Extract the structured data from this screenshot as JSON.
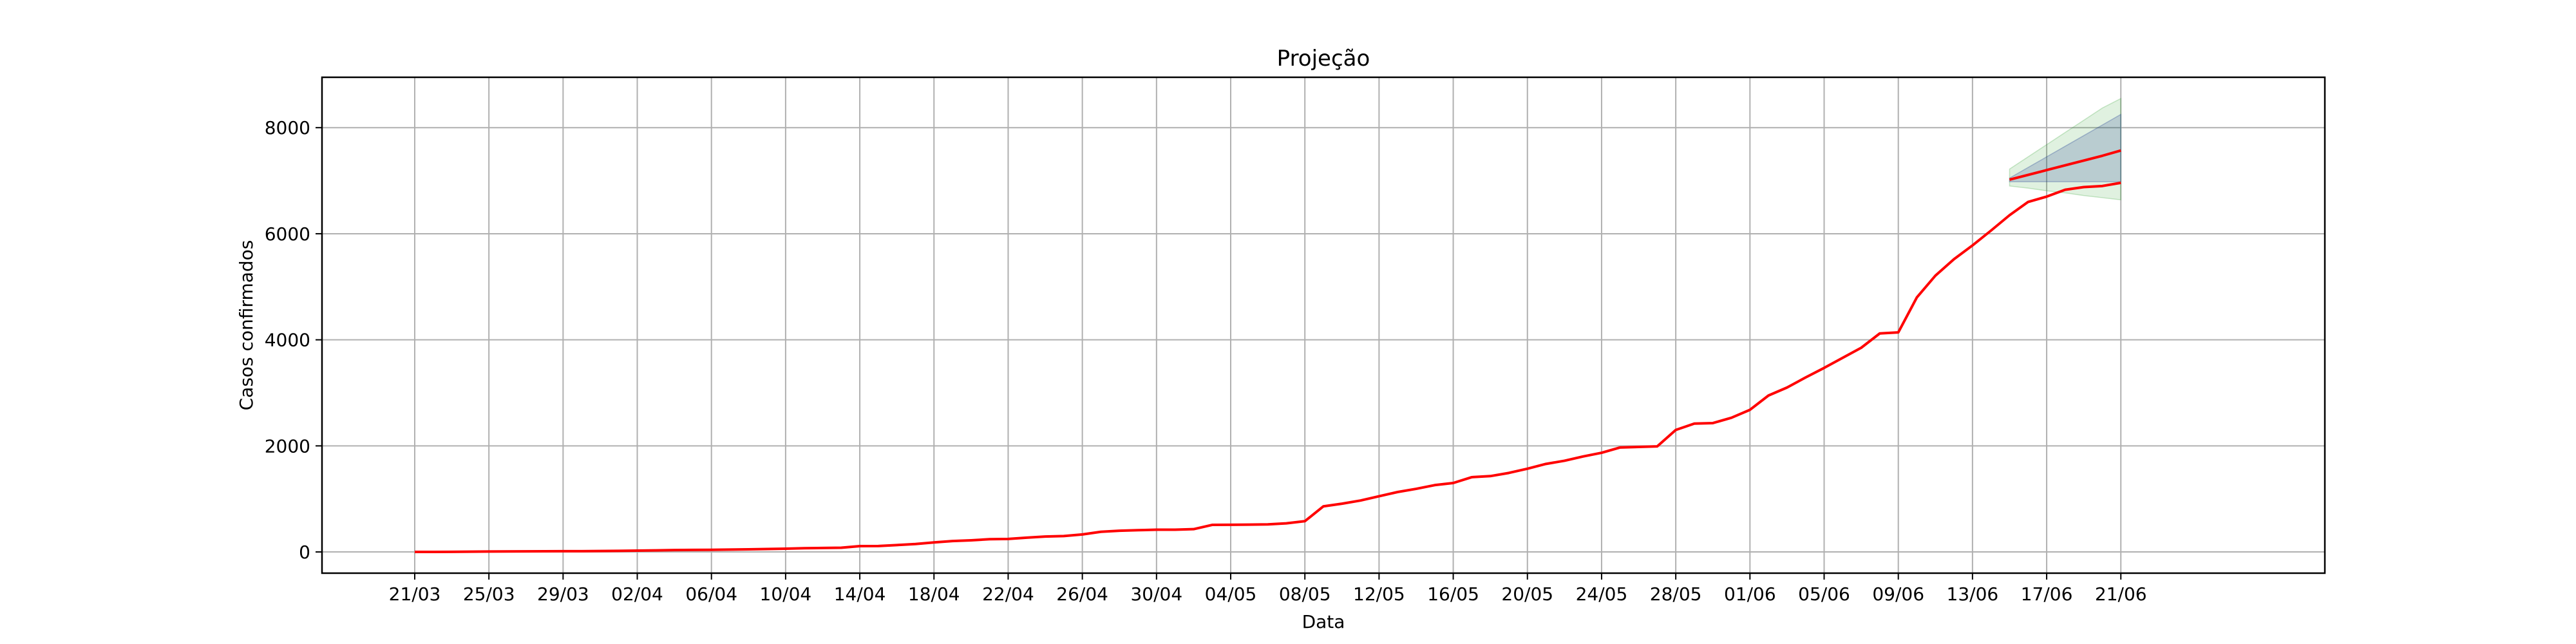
{
  "chart_data": {
    "type": "line",
    "title": "Projeção",
    "xlabel": "Data",
    "ylabel": "Casos confirmados",
    "x_start": "2020-03-21",
    "xlim": [
      "2020-03-16",
      "2020-07-02"
    ],
    "ylim": [
      -400,
      8950
    ],
    "grid": true,
    "x_ticks": [
      "21/03",
      "25/03",
      "29/03",
      "02/04",
      "06/04",
      "10/04",
      "14/04",
      "18/04",
      "22/04",
      "26/04",
      "30/04",
      "04/05",
      "08/05",
      "12/05",
      "16/05",
      "20/05",
      "24/05",
      "28/05",
      "01/06",
      "05/06",
      "09/06",
      "13/06",
      "17/06",
      "21/06"
    ],
    "y_ticks": [
      0,
      2000,
      4000,
      6000,
      8000
    ],
    "series": [
      {
        "color": "#ff0000",
        "values": [
          0,
          0,
          2,
          5,
          8,
          10,
          12,
          13,
          14,
          15,
          18,
          20,
          25,
          30,
          35,
          38,
          40,
          45,
          50,
          55,
          62,
          70,
          75,
          80,
          110,
          112,
          130,
          150,
          180,
          205,
          220,
          240,
          245,
          270,
          290,
          300,
          330,
          380,
          400,
          410,
          420,
          420,
          430,
          510,
          512,
          515,
          520,
          540,
          580,
          860,
          910,
          970,
          1050,
          1130,
          1190,
          1260,
          1300,
          1410,
          1430,
          1490,
          1570,
          1660,
          1720,
          1800,
          1870,
          1970,
          1980,
          1990,
          2300,
          2420,
          2430,
          2530,
          2680,
          2950,
          3100,
          3290,
          3470,
          3660,
          3850,
          4120,
          4140,
          4800,
          5210,
          5520,
          5780,
          6060,
          6350,
          6600,
          6700,
          6830,
          6880,
          6900,
          6960
        ]
      },
      {
        "color": "#ff0000",
        "start": "2020-06-15",
        "values": [
          7020,
          7110,
          7200,
          7290,
          7380,
          7470,
          7570
        ]
      }
    ],
    "confidence_bands": [
      {
        "color": "#2ca02c",
        "opacity": 0.15,
        "start": "2020-06-15",
        "lower": [
          6900,
          6860,
          6810,
          6770,
          6720,
          6680,
          6640
        ],
        "upper": [
          7220,
          7450,
          7680,
          7910,
          8140,
          8370,
          8550
        ]
      },
      {
        "color": "#1f3a93",
        "opacity": 0.2,
        "start": "2020-06-15",
        "lower": [
          6980,
          6980,
          6980,
          6980,
          6980,
          6980,
          6980
        ],
        "upper": [
          7050,
          7250,
          7450,
          7650,
          7850,
          8050,
          8250
        ]
      }
    ]
  }
}
